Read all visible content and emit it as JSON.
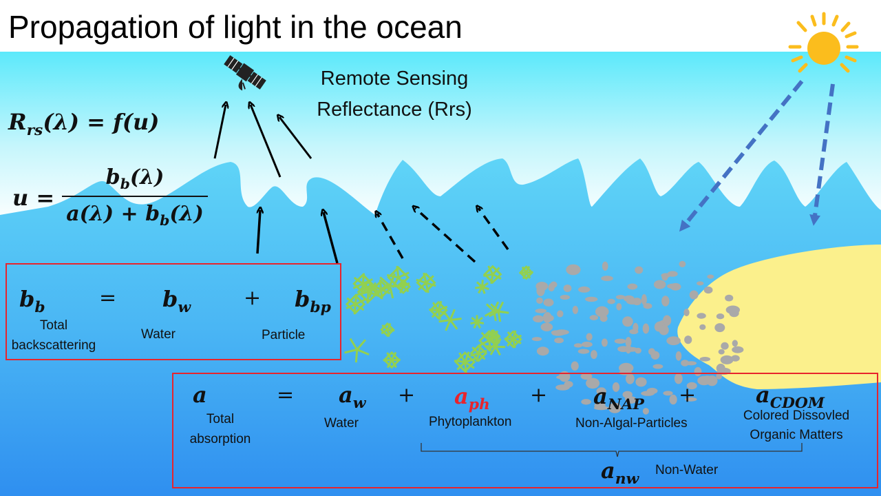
{
  "title": "Propagation of light in the ocean",
  "rrs_label": "Remote Sensing\nReflectance (Rrs)",
  "eq_rrs": {
    "R": "R",
    "rs": "rs",
    "rest": "(λ) = f(u)"
  },
  "eq_u": {
    "u": "u =",
    "num_b": "b",
    "num_sub": "b",
    "num_rest": "(λ)",
    "den_a": "a(λ) + b",
    "den_sub": "b",
    "den_rest": "(λ)"
  },
  "backscatter": {
    "total_sym": "b",
    "total_sub": "b",
    "total_label": "Total\nbackscattering",
    "eq": "=",
    "water_sym": "b",
    "water_sub": "w",
    "water_label": "Water",
    "plus": "+",
    "particle_sym": "b",
    "particle_sub": "bp",
    "particle_label": "Particle"
  },
  "absorption": {
    "total_sym": "a",
    "total_label": "Total\nabsorption",
    "eq": "=",
    "water_sym": "a",
    "water_sub": "w",
    "water_label": "Water",
    "plus1": "+",
    "ph_sym": "a",
    "ph_sub": "ph",
    "ph_label": "Phytoplankton",
    "plus2": "+",
    "nap_sym": "a",
    "nap_sub": "NAP",
    "nap_label": "Non-Algal-Particles",
    "plus3": "+",
    "cdom_sym": "a",
    "cdom_sub": "CDOM",
    "cdom_label": "Colored Dissovled\nOrganic Matters",
    "nw_sym": "a",
    "nw_sub": "nw",
    "nw_label": "Non-Water"
  },
  "colors": {
    "sky_top": "#5ce9fb",
    "water_top": "#5fd4f7",
    "water_bottom": "#2f8ff0",
    "sun": "#fbbd1d",
    "box_border": "#e8242c",
    "ph_red": "#e8242c",
    "incident_arrow": "#4472c4",
    "sediment": "#fbf08c",
    "particles": "#a9a9a9",
    "phytoplankton": "#92d050"
  },
  "icons": [
    "satellite-icon",
    "sun-icon"
  ]
}
